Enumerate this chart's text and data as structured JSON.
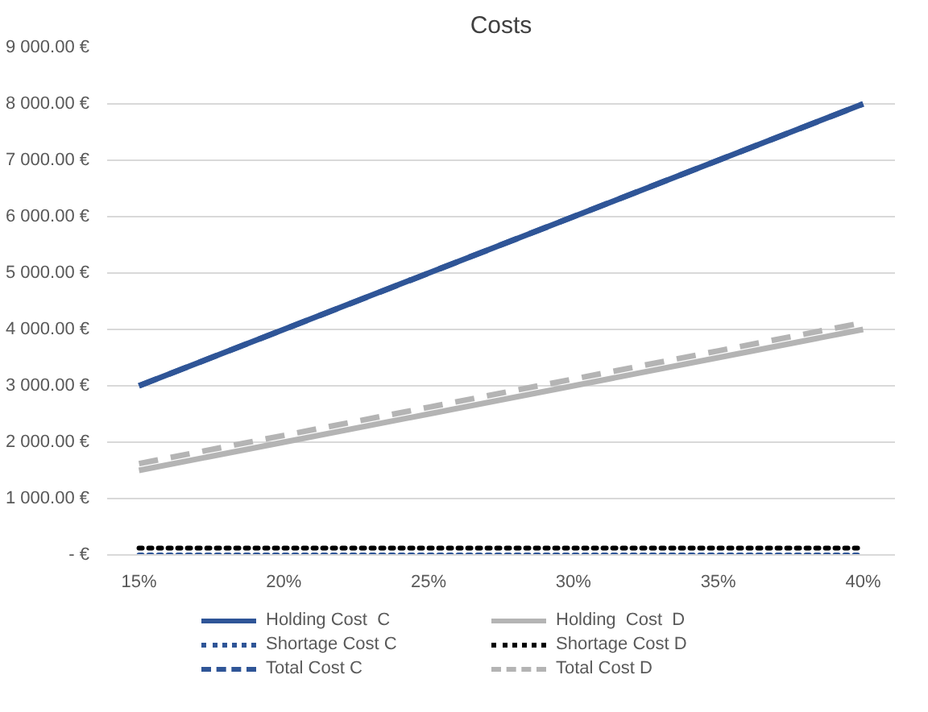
{
  "chart_data": {
    "type": "line",
    "title": "Costs",
    "x": [
      15,
      20,
      25,
      30,
      35,
      40
    ],
    "xlim": [
      13.9,
      41.1
    ],
    "xticks": [
      {
        "value": 15,
        "label": "15%"
      },
      {
        "value": 20,
        "label": "20%"
      },
      {
        "value": 25,
        "label": "25%"
      },
      {
        "value": 30,
        "label": "30%"
      },
      {
        "value": 35,
        "label": "35%"
      },
      {
        "value": 40,
        "label": "40%"
      }
    ],
    "ylim": [
      0,
      9000
    ],
    "yticks": [
      {
        "value": 0,
        "label": "- €"
      },
      {
        "value": 1000,
        "label": "1 000.00 €"
      },
      {
        "value": 2000,
        "label": "2 000.00 €"
      },
      {
        "value": 3000,
        "label": "3 000.00 €"
      },
      {
        "value": 4000,
        "label": "4 000.00 €"
      },
      {
        "value": 5000,
        "label": "5 000.00 €"
      },
      {
        "value": 6000,
        "label": "6 000.00 €"
      },
      {
        "value": 7000,
        "label": "7 000.00 €"
      },
      {
        "value": 8000,
        "label": "8 000.00 €"
      },
      {
        "value": 9000,
        "label": "9 000.00 €"
      }
    ],
    "grid": "y",
    "legend": "bottom",
    "series": [
      {
        "name": "Holding Cost  C",
        "color": "#2f5597",
        "line_style": "solid",
        "values": [
          3000,
          4000,
          5000,
          6000,
          7000,
          8000
        ]
      },
      {
        "name": "Holding  Cost  D",
        "color": "#b4b4b4",
        "line_style": "solid",
        "values": [
          1500,
          2000,
          2500,
          3000,
          3500,
          4000
        ]
      },
      {
        "name": "Shortage Cost C",
        "color": "#2f5597",
        "line_style": "dotted",
        "values": [
          0,
          0,
          0,
          0,
          0,
          0
        ]
      },
      {
        "name": "Shortage Cost D",
        "color": "#000000",
        "line_style": "dotted",
        "values": [
          120,
          120,
          120,
          120,
          120,
          120
        ]
      },
      {
        "name": "Total Cost C",
        "color": "#2f5597",
        "line_style": "dashed",
        "values": [
          3000,
          4000,
          5000,
          6000,
          7000,
          8000
        ]
      },
      {
        "name": "Total Cost D",
        "color": "#b4b4b4",
        "line_style": "dashed",
        "values": [
          1620,
          2120,
          2620,
          3120,
          3620,
          4120
        ]
      }
    ]
  }
}
